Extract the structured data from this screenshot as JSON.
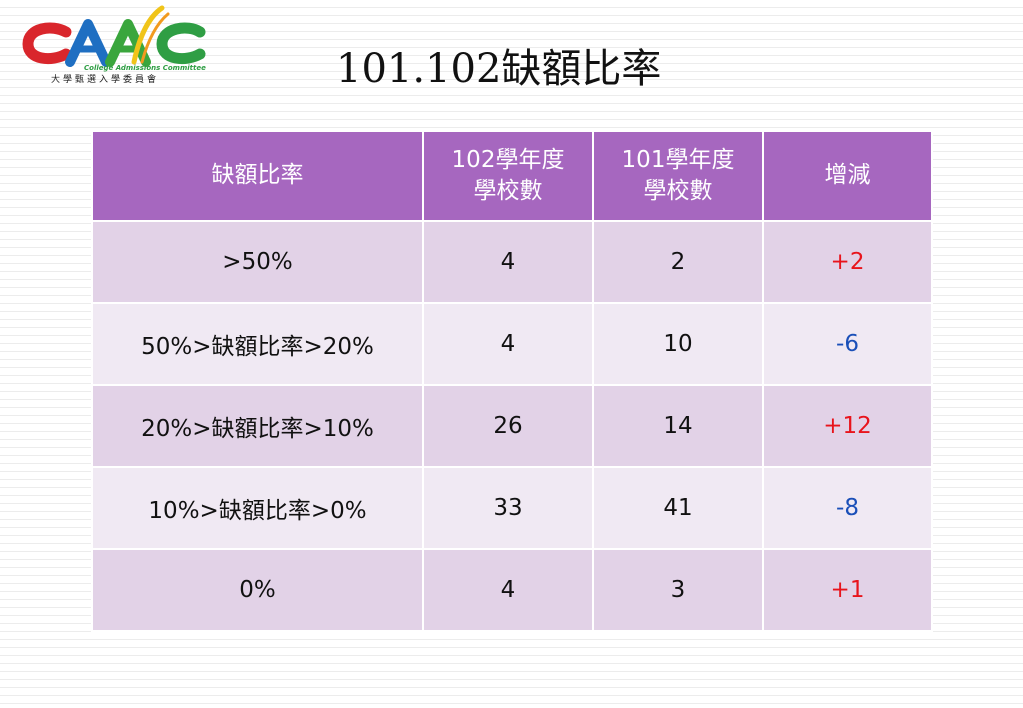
{
  "logo": {
    "wordmark": "CAAC",
    "tagline": "College Admissions Committee",
    "caption": "大學甄選入學委員會",
    "colors": {
      "c_red": "#d9262c",
      "a_blue": "#1f6fc2",
      "a_green": "#3aa63d",
      "c_green": "#2f9e44",
      "accent_yellow": "#f0c419",
      "accent_orange": "#f29a1f"
    }
  },
  "title": "101.102缺額比率",
  "table": {
    "headers": [
      {
        "lines": [
          "缺額比率"
        ]
      },
      {
        "lines": [
          "102學年度",
          "學校數"
        ]
      },
      {
        "lines": [
          "101學年度",
          "學校數"
        ]
      },
      {
        "lines": [
          "增減"
        ]
      }
    ],
    "rows": [
      {
        "range": ">50%",
        "y102": "4",
        "y101": "2",
        "change": "+2",
        "change_sign": "plus"
      },
      {
        "range": "50%>缺額比率>20%",
        "y102": "4",
        "y101": "10",
        "change": "-6",
        "change_sign": "minus"
      },
      {
        "range": "20%>缺額比率>10%",
        "y102": "26",
        "y101": "14",
        "change": "+12",
        "change_sign": "plus"
      },
      {
        "range": "10%>缺額比率>0%",
        "y102": "33",
        "y101": "41",
        "change": "-8",
        "change_sign": "minus"
      },
      {
        "range": "0%",
        "y102": "4",
        "y101": "3",
        "change": "+1",
        "change_sign": "plus"
      }
    ],
    "colors": {
      "header_bg": "#a667bf",
      "row_odd_bg": "#e2d2e7",
      "row_even_bg": "#f0e9f3",
      "increase": "#e8141c",
      "decrease": "#1a4fb8"
    }
  }
}
